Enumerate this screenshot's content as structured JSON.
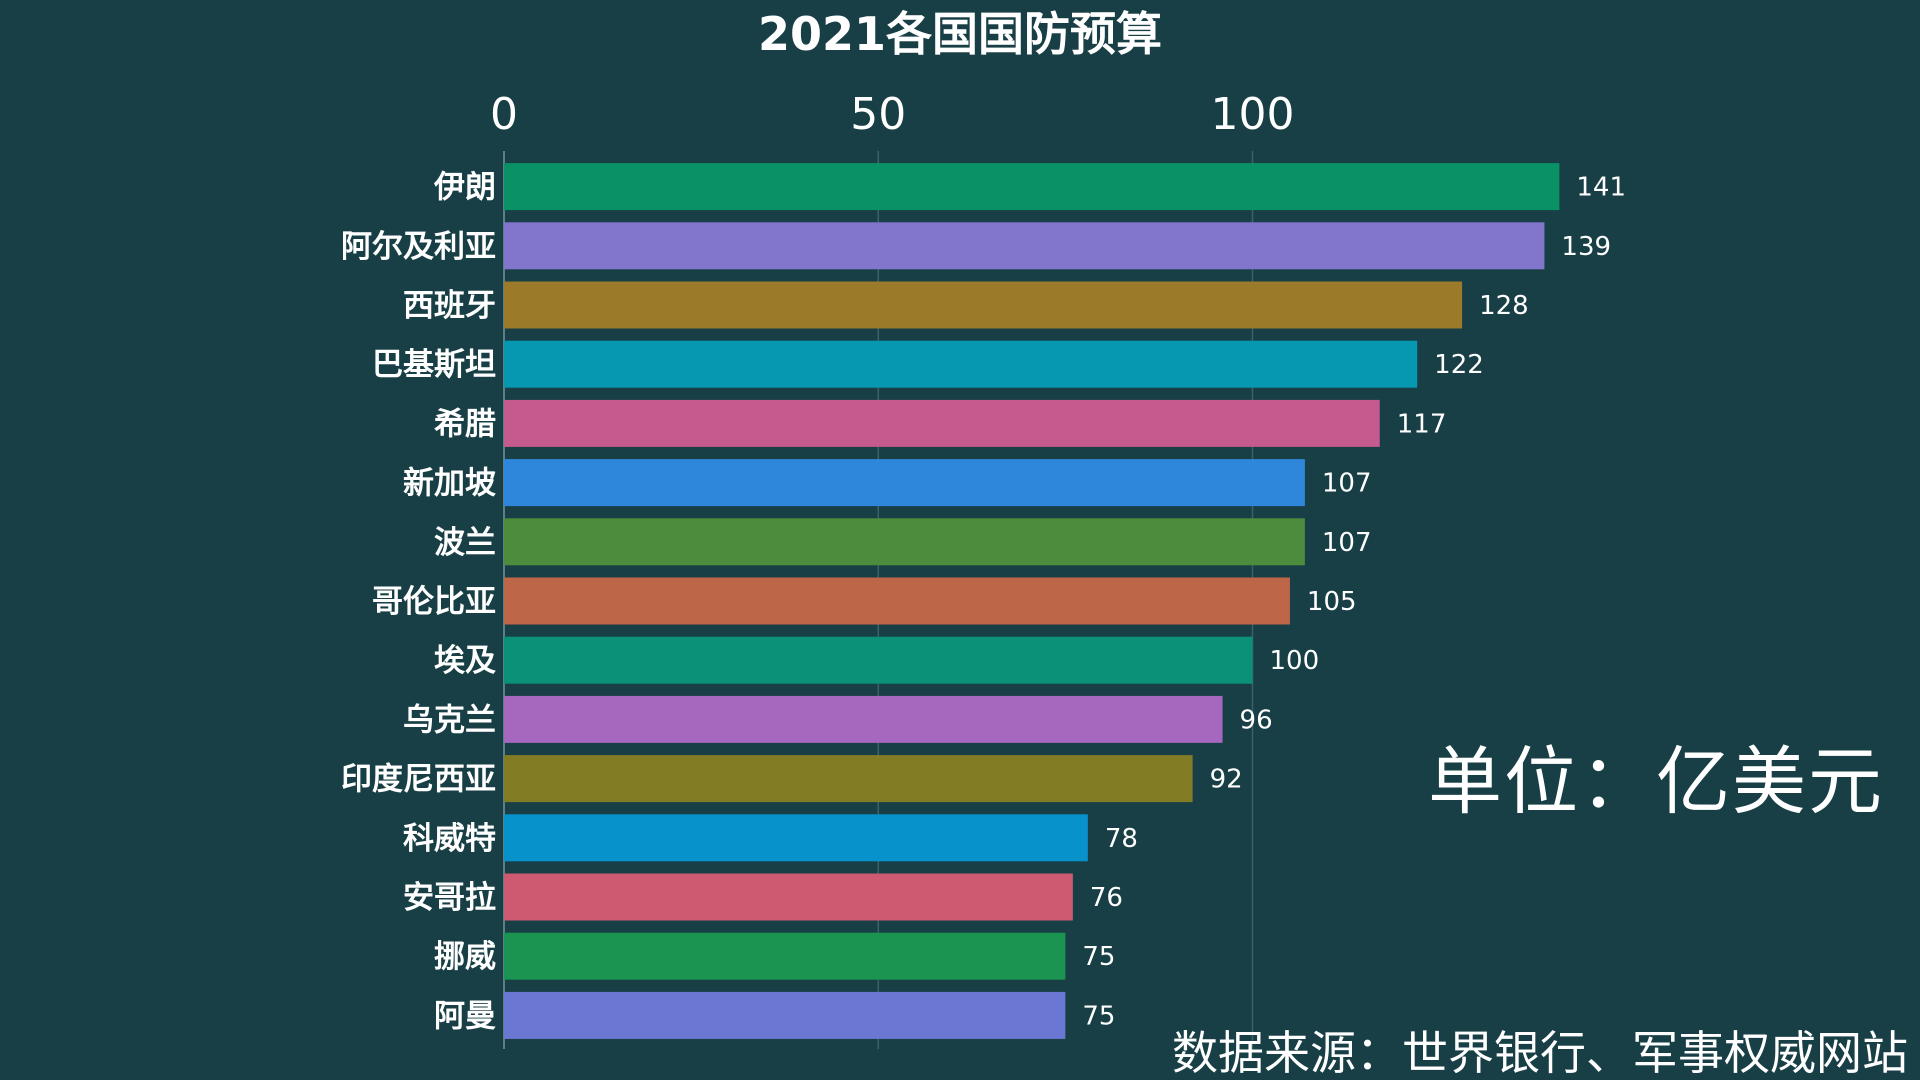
{
  "chart_data": {
    "type": "bar",
    "orientation": "horizontal",
    "title": "2021各国国防预算",
    "xlabel": "",
    "ylabel": "",
    "xlim": [
      0,
      150
    ],
    "x_ticks": [
      0,
      50,
      100
    ],
    "grid": true,
    "categories": [
      "伊朗",
      "阿尔及利亚",
      "西班牙",
      "巴基斯坦",
      "希腊",
      "新加坡",
      "波兰",
      "哥伦比亚",
      "埃及",
      "乌克兰",
      "印度尼西亚",
      "科威特",
      "安哥拉",
      "挪威",
      "阿曼"
    ],
    "values": [
      141,
      139,
      128,
      122,
      117,
      107,
      107,
      105,
      100,
      96,
      92,
      78,
      76,
      75,
      75
    ],
    "colors": [
      "#0a9166",
      "#8276cc",
      "#9b7a2a",
      "#0798b1",
      "#c55a8f",
      "#2f87db",
      "#4c8c3c",
      "#bd6748",
      "#0a9178",
      "#a667bf",
      "#827d24",
      "#0892cc",
      "#cd5a71",
      "#1b9452",
      "#6a78d3"
    ],
    "annotations": {
      "unit": "单位：亿美元",
      "source": "数据来源：世界银行、军事权威网站"
    }
  }
}
